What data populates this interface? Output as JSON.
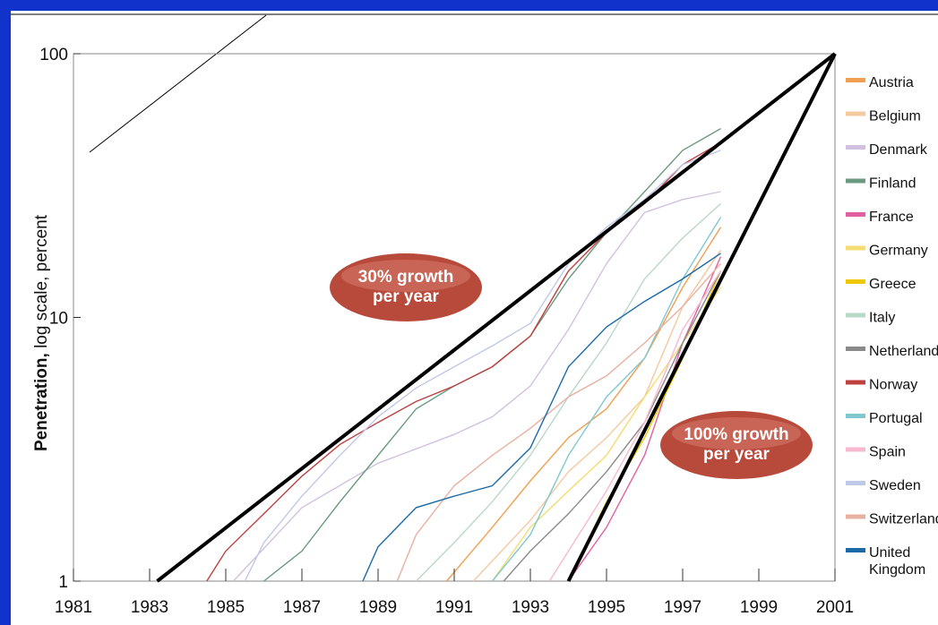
{
  "chart_data": {
    "type": "line",
    "title": "",
    "ylabel_bold": "Penetration,",
    "ylabel_rest": " log scale, percent",
    "xlabel": "",
    "yscale": "log",
    "xlim": [
      1981,
      2001
    ],
    "ylim": [
      1,
      100
    ],
    "x_ticks": [
      "1981",
      "1983",
      "1985",
      "1987",
      "1989",
      "1991",
      "1993",
      "1995",
      "1997",
      "1999",
      "2001"
    ],
    "y_ticks": [
      "1",
      "10",
      "100"
    ],
    "reference_lines": [
      {
        "name": "30% growth per year",
        "points": [
          [
            1983.2,
            1
          ],
          [
            2001,
            100
          ]
        ]
      },
      {
        "name": "100% growth per year",
        "points": [
          [
            1994,
            1
          ],
          [
            2001,
            100
          ]
        ]
      }
    ],
    "annotations": [
      {
        "line1": "30% growth",
        "line2": "per year"
      },
      {
        "line1": "100% growth",
        "line2": "per year"
      }
    ],
    "series": [
      {
        "name": "Austria",
        "color": "#f0a050",
        "points": [
          [
            1990.8,
            1
          ],
          [
            1992,
            1.6
          ],
          [
            1993,
            2.4
          ],
          [
            1994,
            3.5
          ],
          [
            1995,
            4.5
          ],
          [
            1996,
            7
          ],
          [
            1997,
            13
          ],
          [
            1998,
            22
          ]
        ]
      },
      {
        "name": "Belgium",
        "color": "#f5c8a0",
        "points": [
          [
            1991.5,
            1
          ],
          [
            1993,
            1.7
          ],
          [
            1994,
            2.6
          ],
          [
            1995,
            3.5
          ],
          [
            1996,
            5
          ],
          [
            1997,
            11
          ],
          [
            1998,
            18
          ]
        ]
      },
      {
        "name": "Denmark",
        "color": "#d2c0e0",
        "points": [
          [
            1985.2,
            1
          ],
          [
            1987,
            1.9
          ],
          [
            1989,
            2.8
          ],
          [
            1991,
            3.6
          ],
          [
            1992,
            4.2
          ],
          [
            1993,
            5.5
          ],
          [
            1994,
            9
          ],
          [
            1995,
            16
          ],
          [
            1996,
            25
          ],
          [
            1997,
            28
          ],
          [
            1998,
            30
          ]
        ]
      },
      {
        "name": "Finland",
        "color": "#6a9a80",
        "points": [
          [
            1986,
            1
          ],
          [
            1987,
            1.3
          ],
          [
            1988,
            2
          ],
          [
            1989,
            3
          ],
          [
            1990,
            4.5
          ],
          [
            1991,
            5.5
          ],
          [
            1992,
            6.5
          ],
          [
            1993,
            8.5
          ],
          [
            1994,
            14
          ],
          [
            1995,
            21
          ],
          [
            1996,
            30
          ],
          [
            1997,
            43
          ],
          [
            1998,
            52
          ]
        ]
      },
      {
        "name": "France",
        "color": "#e060a0",
        "points": [
          [
            1994,
            1
          ],
          [
            1995,
            1.6
          ],
          [
            1996,
            3
          ],
          [
            1997,
            8
          ],
          [
            1998,
            17
          ]
        ]
      },
      {
        "name": "Germany",
        "color": "#f5dc70",
        "points": [
          [
            1992,
            1
          ],
          [
            1993,
            1.6
          ],
          [
            1994,
            2.2
          ],
          [
            1995,
            3
          ],
          [
            1996,
            5
          ],
          [
            1997,
            8
          ],
          [
            1998,
            13
          ]
        ]
      },
      {
        "name": "Greece",
        "color": "#f0c800",
        "points": [
          [
            1994,
            1
          ],
          [
            1995,
            2
          ],
          [
            1996,
            3.5
          ],
          [
            1997,
            7
          ],
          [
            1998,
            15
          ]
        ]
      },
      {
        "name": "Italy",
        "color": "#b8d8c8",
        "points": [
          [
            1990,
            1
          ],
          [
            1991,
            1.4
          ],
          [
            1992,
            2
          ],
          [
            1993,
            3
          ],
          [
            1994,
            5
          ],
          [
            1995,
            8
          ],
          [
            1996,
            14
          ],
          [
            1997,
            20
          ],
          [
            1998,
            27
          ]
        ]
      },
      {
        "name": "Netherlands",
        "color": "#8a8a8a",
        "points": [
          [
            1992.3,
            1
          ],
          [
            1993,
            1.3
          ],
          [
            1994,
            1.8
          ],
          [
            1995,
            2.6
          ],
          [
            1996,
            4
          ],
          [
            1997,
            8
          ],
          [
            1998,
            15
          ]
        ]
      },
      {
        "name": "Norway",
        "color": "#c04040",
        "points": [
          [
            1984.5,
            1
          ],
          [
            1985,
            1.3
          ],
          [
            1986,
            1.8
          ],
          [
            1987,
            2.5
          ],
          [
            1988,
            3.3
          ],
          [
            1989,
            4
          ],
          [
            1990,
            4.8
          ],
          [
            1991,
            5.5
          ],
          [
            1992,
            6.5
          ],
          [
            1993,
            8.5
          ],
          [
            1994,
            15
          ],
          [
            1995,
            21
          ],
          [
            1996,
            27
          ],
          [
            1997,
            38
          ],
          [
            1998,
            46
          ]
        ]
      },
      {
        "name": "Portugal",
        "color": "#80c8d0",
        "points": [
          [
            1992,
            1
          ],
          [
            1993,
            1.5
          ],
          [
            1994,
            3
          ],
          [
            1995,
            5
          ],
          [
            1996,
            7
          ],
          [
            1997,
            14
          ],
          [
            1998,
            24
          ]
        ]
      },
      {
        "name": "Spain",
        "color": "#f8b8d0",
        "points": [
          [
            1993.5,
            1
          ],
          [
            1994,
            1.3
          ],
          [
            1995,
            2.2
          ],
          [
            1996,
            4
          ],
          [
            1997,
            9
          ],
          [
            1998,
            15
          ]
        ]
      },
      {
        "name": "Sweden",
        "color": "#c0c8e8",
        "points": [
          [
            1985.5,
            1
          ],
          [
            1986,
            1.4
          ],
          [
            1987,
            2.1
          ],
          [
            1988,
            3
          ],
          [
            1989,
            4.2
          ],
          [
            1990,
            5.4
          ],
          [
            1991,
            6.5
          ],
          [
            1992,
            7.8
          ],
          [
            1993,
            9.5
          ],
          [
            1994,
            16
          ],
          [
            1995,
            22
          ],
          [
            1996,
            28
          ],
          [
            1997,
            38
          ],
          [
            1998,
            43
          ]
        ]
      },
      {
        "name": "Switzerland",
        "color": "#e8b0a0",
        "points": [
          [
            1989.5,
            1
          ],
          [
            1990,
            1.5
          ],
          [
            1991,
            2.3
          ],
          [
            1992,
            3
          ],
          [
            1993,
            3.8
          ],
          [
            1994,
            5
          ],
          [
            1995,
            6
          ],
          [
            1996,
            8
          ],
          [
            1997,
            11
          ],
          [
            1998,
            16
          ]
        ]
      },
      {
        "name": "United Kingdom",
        "color": "#1a6aa8",
        "points": [
          [
            1988.6,
            1
          ],
          [
            1989,
            1.35
          ],
          [
            1990,
            1.9
          ],
          [
            1991,
            2.1
          ],
          [
            1992,
            2.3
          ],
          [
            1993,
            3.2
          ],
          [
            1994,
            6.5
          ],
          [
            1995,
            9.2
          ],
          [
            1996,
            11.5
          ],
          [
            1997,
            14
          ],
          [
            1998,
            17.5
          ]
        ]
      }
    ],
    "legend": [
      {
        "label": "Austria",
        "color": "#f0a050"
      },
      {
        "label": "Belgium",
        "color": "#f5c8a0"
      },
      {
        "label": "Denmark",
        "color": "#d2c0e0"
      },
      {
        "label": "Finland",
        "color": "#6a9a80"
      },
      {
        "label": "France",
        "color": "#e060a0"
      },
      {
        "label": "Germany",
        "color": "#f5dc70"
      },
      {
        "label": "Greece",
        "color": "#f0c800"
      },
      {
        "label": "Italy",
        "color": "#b8d8c8"
      },
      {
        "label": "Netherlands",
        "color": "#8a8a8a"
      },
      {
        "label": "Norway",
        "color": "#c04040"
      },
      {
        "label": "Portugal",
        "color": "#80c8d0"
      },
      {
        "label": "Spain",
        "color": "#f8b8d0"
      },
      {
        "label": "Sweden",
        "color": "#c0c8e8"
      },
      {
        "label": "Switzerland",
        "color": "#e8b0a0"
      },
      {
        "label": "United",
        "label2": "Kingdom",
        "color": "#1a6aa8"
      }
    ],
    "legend_position": "right",
    "grid": false
  }
}
